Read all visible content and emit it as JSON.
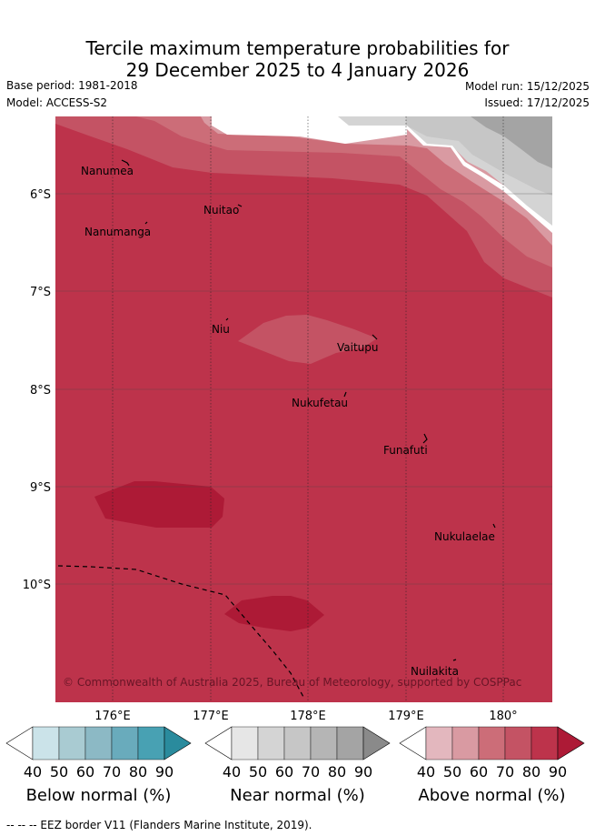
{
  "title": {
    "line1": "Tercile maximum temperature probabilities for",
    "line2": "29 December 2025 to 4 January 2026"
  },
  "meta": {
    "base_period": "Base period: 1981-2018",
    "model": "Model: ACCESS-S2",
    "model_run": "Model run: 15/12/2025",
    "issued": "Issued: 17/12/2025"
  },
  "map": {
    "lon_ticks": [
      "176°E",
      "177°E",
      "178°E",
      "179°E",
      "180°"
    ],
    "lat_ticks": [
      "6°S",
      "7°S",
      "8°S",
      "9°S",
      "10°S"
    ],
    "places": [
      "Nanumea",
      "Nuitao",
      "Nanumanga",
      "Niu",
      "Vaitupu",
      "Nukufetau",
      "Funafuti",
      "Nukulaelae",
      "Nuilakita"
    ],
    "copyright": "© Commonwealth of Australia 2025, Bureau of Meteorology, supported by COSPPac",
    "colors": {
      "above_80": "#bd334b",
      "above_90": "#ad1a36",
      "above_70": "#c45364",
      "above_60": "#cc6d78",
      "above_50": "#d99aa2",
      "near_50": "#d4d4d4",
      "near_60": "#c6c6c6",
      "near_80": "#a4a4a4"
    }
  },
  "colorbars": [
    {
      "title": "Below normal (%)",
      "ticks": [
        "40",
        "50",
        "60",
        "70",
        "80",
        "90"
      ],
      "colors": [
        "#ffffff",
        "#cbe3e9",
        "#a9cbd2",
        "#8cb9c5",
        "#69abbc",
        "#48a1b3",
        "#2a8b9d"
      ]
    },
    {
      "title": "Near normal (%)",
      "ticks": [
        "40",
        "50",
        "60",
        "70",
        "80",
        "90"
      ],
      "colors": [
        "#ffffff",
        "#e6e6e6",
        "#d4d4d4",
        "#c6c6c6",
        "#b5b5b5",
        "#a4a4a4",
        "#8a8a8a"
      ]
    },
    {
      "title": "Above normal (%)",
      "ticks": [
        "40",
        "50",
        "60",
        "70",
        "80",
        "90"
      ],
      "colors": [
        "#ffffff",
        "#e3b7be",
        "#d99aa2",
        "#cc6d78",
        "#c45364",
        "#bd334b",
        "#ad1a36"
      ]
    }
  ],
  "footer": "--  --  -- EEZ border V11 (Flanders Marine Institute, 2019)."
}
